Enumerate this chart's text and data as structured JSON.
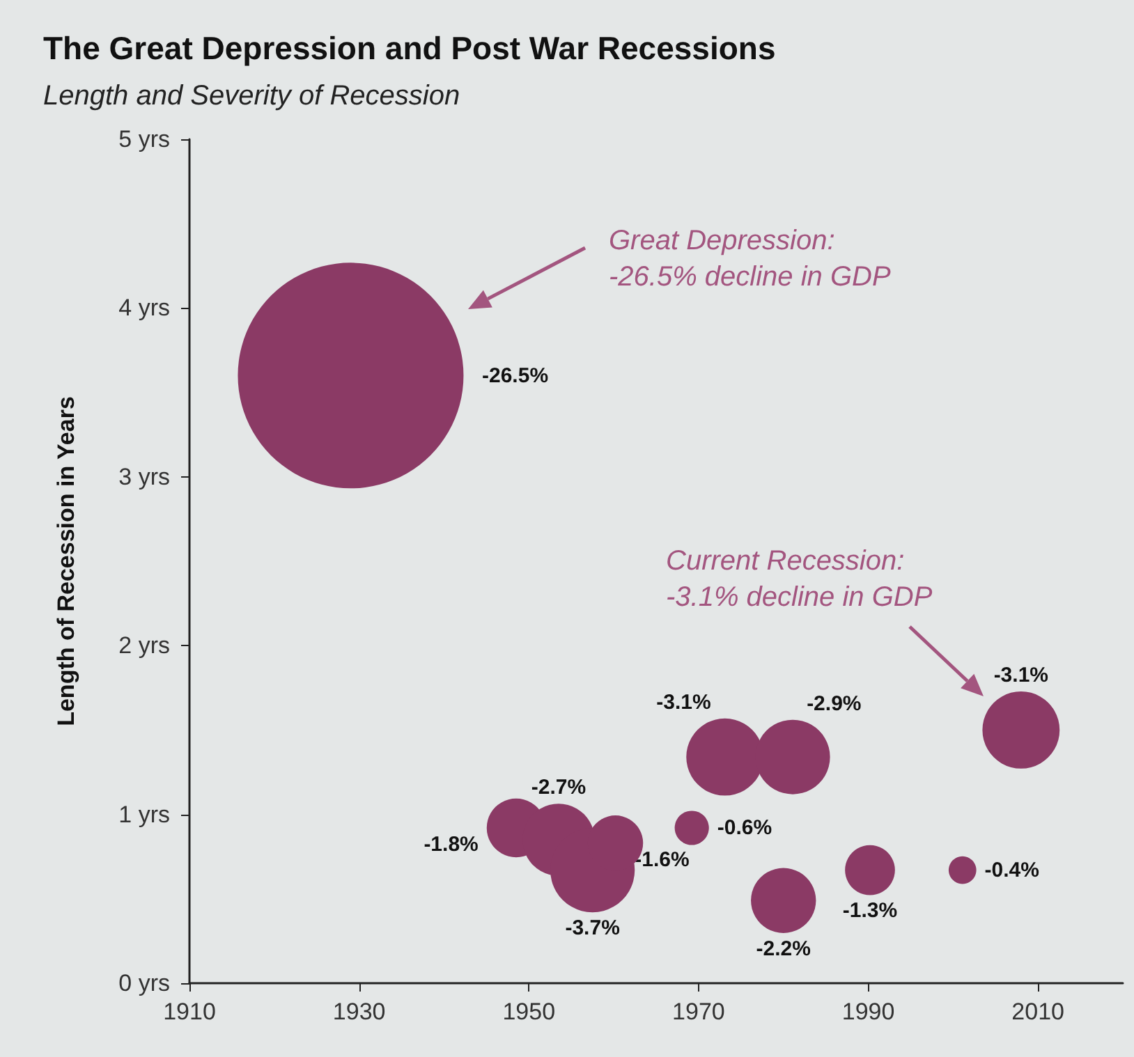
{
  "chart_data": {
    "type": "bubble",
    "title": "The Great Depression and Post War Recessions",
    "subtitle": "Length and Severity of Recession",
    "ylabel": "Length of Recession in Years",
    "x": [
      1929,
      1948.5,
      1953.5,
      1957.5,
      1960.2,
      1969.2,
      1973.1,
      1981.1,
      1980,
      1990.2,
      2001.1,
      2008
    ],
    "values": [
      3.6,
      0.92,
      0.85,
      0.67,
      0.83,
      0.92,
      1.34,
      1.34,
      0.49,
      0.67,
      0.67,
      1.5
    ],
    "sizes": [
      1,
      0.068,
      0.102,
      0.14,
      0.06,
      0.023,
      0.117,
      0.109,
      0.083,
      0.049,
      0.015,
      0.117
    ],
    "color": "#8b3a65",
    "xlim": [
      1910,
      2020
    ],
    "xticks": [
      1910,
      1930,
      1950,
      1970,
      1990,
      2010
    ],
    "ylim": [
      0,
      5
    ],
    "yticks": [
      {
        "value": 0,
        "label": "0 yrs"
      },
      {
        "value": 1,
        "label": "1 yrs"
      },
      {
        "value": 2,
        "label": "2 yrs"
      },
      {
        "value": 3,
        "label": "3 yrs"
      },
      {
        "value": 4,
        "label": "4 yrs"
      },
      {
        "value": 5,
        "label": "5 yrs"
      }
    ],
    "grid": false,
    "annotations": [
      "Great Depression:\n-26.5% decline in GDP",
      "Current Recession:\n-3.1% decline in GDP",
      "-26.5%",
      {
        "text": "-1.8%",
        "x": 1948.5,
        "y": 0.92
      },
      {
        "text": "-2.7%",
        "x": 1953.5,
        "y": 0.85
      },
      {
        "text": "-3.7%",
        "x": 1957.5,
        "y": 0.67
      },
      {
        "text": "-1.6%",
        "x": 1960.2,
        "y": 0.83
      },
      {
        "text": "-0.6%",
        "x": 1969.2,
        "y": 0.92
      },
      {
        "text": "-3.1%",
        "x": 1973.1,
        "y": 1.34
      },
      {
        "text": "-2.9%",
        "x": 1981.1,
        "y": 1.34
      },
      {
        "text": "-2.2%",
        "x": 1980,
        "y": 0.49
      },
      {
        "text": "-1.3%",
        "x": 1990.2,
        "y": 0.67
      },
      {
        "text": "-0.4%",
        "x": 2001.1,
        "y": 0.67
      },
      {
        "text": "-3.1%",
        "x": 2008,
        "y": 1.5
      }
    ]
  }
}
